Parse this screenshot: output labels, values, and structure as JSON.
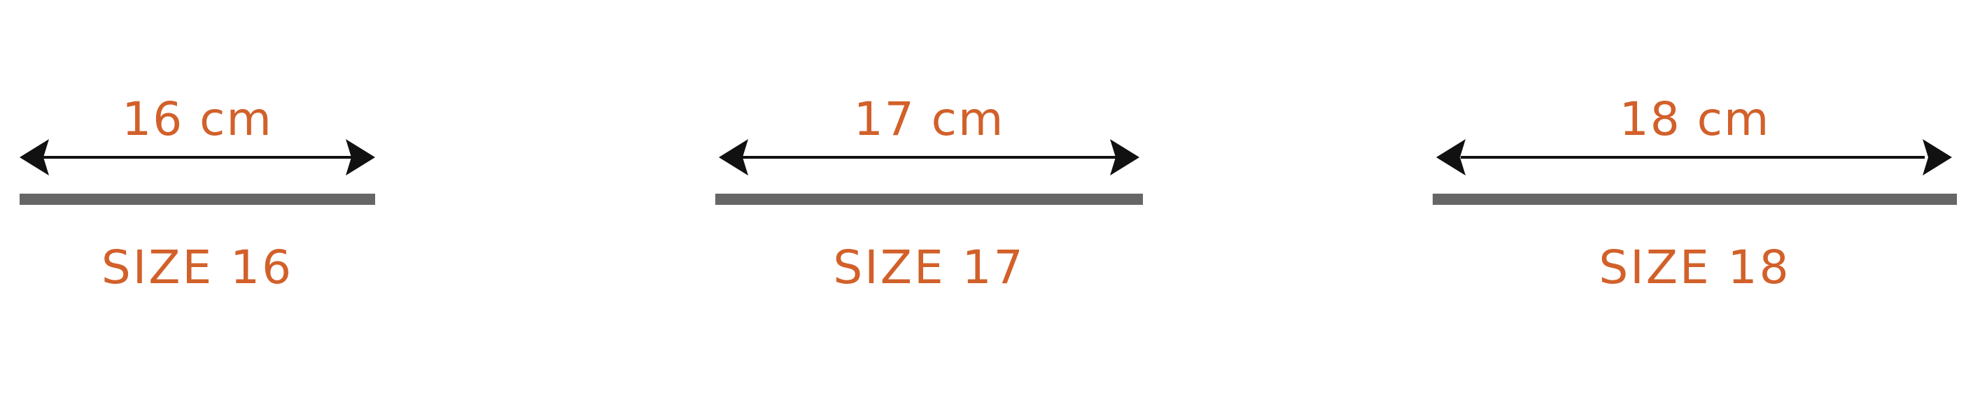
{
  "colors": {
    "label": "#D2602A",
    "arrow": "#111111",
    "band": "#666666"
  },
  "sizes": [
    {
      "measurement": "16 cm",
      "label": "SIZE 16",
      "length_cm": 16
    },
    {
      "measurement": "17 cm",
      "label": "SIZE 17",
      "length_cm": 17
    },
    {
      "measurement": "18 cm",
      "label": "SIZE 18",
      "length_cm": 18
    }
  ]
}
